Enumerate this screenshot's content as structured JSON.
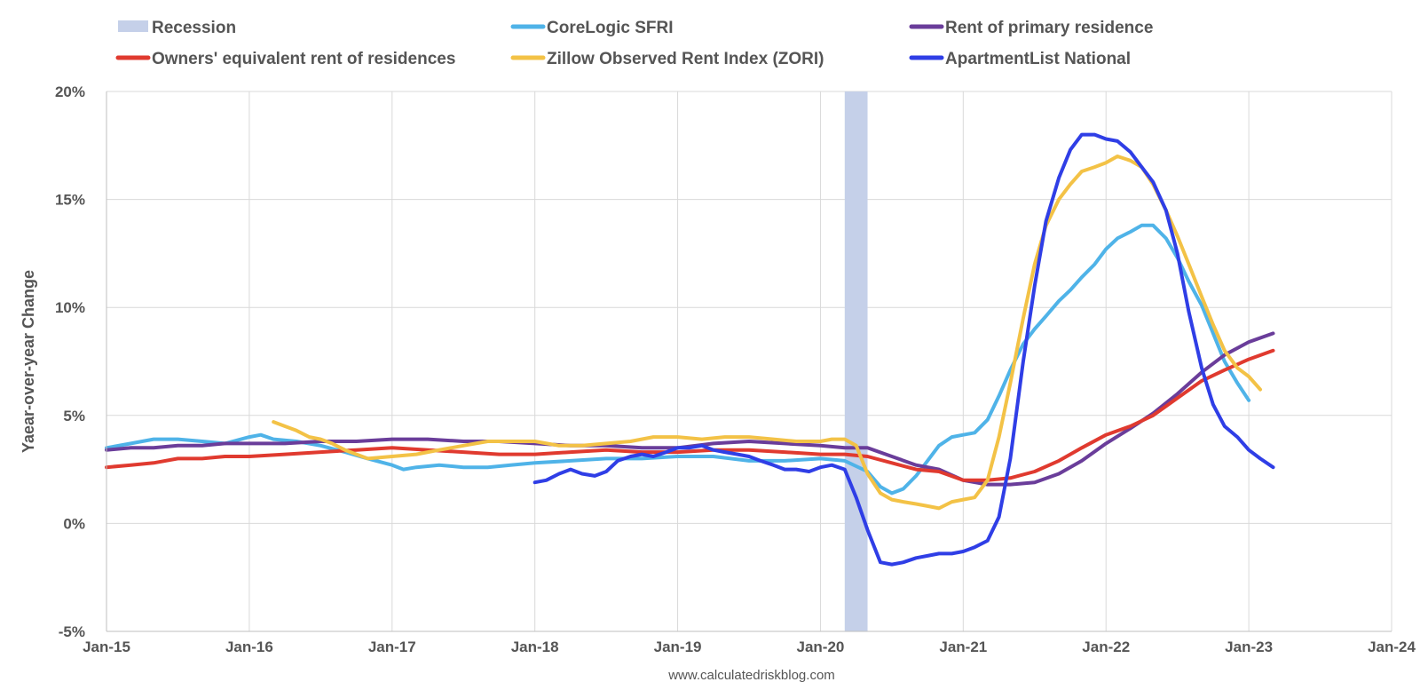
{
  "chart_data": {
    "type": "line",
    "title": "",
    "xlabel": "",
    "ylabel": "Yaear-over-year Change",
    "source": "www.calculatedriskblog.com",
    "grid": true,
    "legend_position": "top",
    "xlim": [
      2015.0,
      2024.0
    ],
    "ylim": [
      -5,
      20
    ],
    "x_ticks": [
      {
        "label": "Jan-15",
        "value": 2015
      },
      {
        "label": "Jan-16",
        "value": 2016
      },
      {
        "label": "Jan-17",
        "value": 2017
      },
      {
        "label": "Jan-18",
        "value": 2018
      },
      {
        "label": "Jan-19",
        "value": 2019
      },
      {
        "label": "Jan-20",
        "value": 2020
      },
      {
        "label": "Jan-21",
        "value": 2021
      },
      {
        "label": "Jan-22",
        "value": 2022
      },
      {
        "label": "Jan-23",
        "value": 2023
      },
      {
        "label": "Jan-24",
        "value": 2024
      }
    ],
    "y_ticks": [
      {
        "label": "-5%",
        "value": -5
      },
      {
        "label": "0%",
        "value": 0
      },
      {
        "label": "5%",
        "value": 5
      },
      {
        "label": "10%",
        "value": 10
      },
      {
        "label": "15%",
        "value": 15
      },
      {
        "label": "20%",
        "value": 20
      }
    ],
    "recession": {
      "label": "Recession",
      "color": "#c5d0e9",
      "start": 2020.17,
      "end": 2020.33
    },
    "series": [
      {
        "name": "CoreLogic SFRI",
        "color": "#4fb3e8",
        "points": [
          [
            2015.0,
            3.5
          ],
          [
            2015.17,
            3.7
          ],
          [
            2015.33,
            3.9
          ],
          [
            2015.5,
            3.9
          ],
          [
            2015.67,
            3.8
          ],
          [
            2015.83,
            3.7
          ],
          [
            2016.0,
            4.0
          ],
          [
            2016.08,
            4.1
          ],
          [
            2016.17,
            3.9
          ],
          [
            2016.33,
            3.8
          ],
          [
            2016.5,
            3.6
          ],
          [
            2016.67,
            3.3
          ],
          [
            2016.83,
            3.0
          ],
          [
            2017.0,
            2.7
          ],
          [
            2017.08,
            2.5
          ],
          [
            2017.17,
            2.6
          ],
          [
            2017.33,
            2.7
          ],
          [
            2017.5,
            2.6
          ],
          [
            2017.67,
            2.6
          ],
          [
            2017.83,
            2.7
          ],
          [
            2018.0,
            2.8
          ],
          [
            2018.25,
            2.9
          ],
          [
            2018.5,
            3.0
          ],
          [
            2018.75,
            3.0
          ],
          [
            2019.0,
            3.1
          ],
          [
            2019.25,
            3.1
          ],
          [
            2019.5,
            2.9
          ],
          [
            2019.75,
            2.9
          ],
          [
            2020.0,
            3.0
          ],
          [
            2020.17,
            2.9
          ],
          [
            2020.33,
            2.4
          ],
          [
            2020.42,
            1.7
          ],
          [
            2020.5,
            1.4
          ],
          [
            2020.58,
            1.6
          ],
          [
            2020.67,
            2.2
          ],
          [
            2020.75,
            2.9
          ],
          [
            2020.83,
            3.6
          ],
          [
            2020.92,
            4.0
          ],
          [
            2021.0,
            4.1
          ],
          [
            2021.08,
            4.2
          ],
          [
            2021.17,
            4.8
          ],
          [
            2021.25,
            5.9
          ],
          [
            2021.33,
            7.1
          ],
          [
            2021.42,
            8.3
          ],
          [
            2021.5,
            9.0
          ],
          [
            2021.58,
            9.6
          ],
          [
            2021.67,
            10.3
          ],
          [
            2021.75,
            10.8
          ],
          [
            2021.83,
            11.4
          ],
          [
            2021.92,
            12.0
          ],
          [
            2022.0,
            12.7
          ],
          [
            2022.08,
            13.2
          ],
          [
            2022.17,
            13.5
          ],
          [
            2022.25,
            13.8
          ],
          [
            2022.33,
            13.8
          ],
          [
            2022.42,
            13.2
          ],
          [
            2022.5,
            12.3
          ],
          [
            2022.58,
            11.2
          ],
          [
            2022.67,
            10.1
          ],
          [
            2022.75,
            8.8
          ],
          [
            2022.83,
            7.5
          ],
          [
            2022.92,
            6.5
          ],
          [
            2023.0,
            5.7
          ]
        ]
      },
      {
        "name": "Rent of primary residence",
        "color": "#6a3d9a",
        "points": [
          [
            2015.0,
            3.4
          ],
          [
            2015.17,
            3.5
          ],
          [
            2015.33,
            3.5
          ],
          [
            2015.5,
            3.6
          ],
          [
            2015.67,
            3.6
          ],
          [
            2015.83,
            3.7
          ],
          [
            2016.0,
            3.7
          ],
          [
            2016.25,
            3.7
          ],
          [
            2016.5,
            3.8
          ],
          [
            2016.75,
            3.8
          ],
          [
            2017.0,
            3.9
          ],
          [
            2017.25,
            3.9
          ],
          [
            2017.5,
            3.8
          ],
          [
            2017.75,
            3.8
          ],
          [
            2018.0,
            3.7
          ],
          [
            2018.25,
            3.6
          ],
          [
            2018.5,
            3.6
          ],
          [
            2018.75,
            3.5
          ],
          [
            2019.0,
            3.5
          ],
          [
            2019.25,
            3.7
          ],
          [
            2019.5,
            3.8
          ],
          [
            2019.75,
            3.7
          ],
          [
            2020.0,
            3.6
          ],
          [
            2020.17,
            3.5
          ],
          [
            2020.33,
            3.5
          ],
          [
            2020.5,
            3.1
          ],
          [
            2020.67,
            2.7
          ],
          [
            2020.83,
            2.5
          ],
          [
            2021.0,
            2.0
          ],
          [
            2021.17,
            1.8
          ],
          [
            2021.33,
            1.8
          ],
          [
            2021.5,
            1.9
          ],
          [
            2021.67,
            2.3
          ],
          [
            2021.83,
            2.9
          ],
          [
            2022.0,
            3.7
          ],
          [
            2022.17,
            4.4
          ],
          [
            2022.33,
            5.1
          ],
          [
            2022.5,
            6.0
          ],
          [
            2022.67,
            7.0
          ],
          [
            2022.83,
            7.8
          ],
          [
            2023.0,
            8.4
          ],
          [
            2023.17,
            8.8
          ]
        ]
      },
      {
        "name": "Owners' equivalent rent of residences",
        "color": "#e03a2f",
        "points": [
          [
            2015.0,
            2.6
          ],
          [
            2015.17,
            2.7
          ],
          [
            2015.33,
            2.8
          ],
          [
            2015.5,
            3.0
          ],
          [
            2015.67,
            3.0
          ],
          [
            2015.83,
            3.1
          ],
          [
            2016.0,
            3.1
          ],
          [
            2016.25,
            3.2
          ],
          [
            2016.5,
            3.3
          ],
          [
            2016.75,
            3.4
          ],
          [
            2017.0,
            3.5
          ],
          [
            2017.25,
            3.4
          ],
          [
            2017.5,
            3.3
          ],
          [
            2017.75,
            3.2
          ],
          [
            2018.0,
            3.2
          ],
          [
            2018.25,
            3.3
          ],
          [
            2018.5,
            3.4
          ],
          [
            2018.75,
            3.3
          ],
          [
            2019.0,
            3.3
          ],
          [
            2019.25,
            3.4
          ],
          [
            2019.5,
            3.4
          ],
          [
            2019.75,
            3.3
          ],
          [
            2020.0,
            3.2
          ],
          [
            2020.17,
            3.2
          ],
          [
            2020.33,
            3.1
          ],
          [
            2020.5,
            2.8
          ],
          [
            2020.67,
            2.5
          ],
          [
            2020.83,
            2.4
          ],
          [
            2021.0,
            2.0
          ],
          [
            2021.17,
            2.0
          ],
          [
            2021.33,
            2.1
          ],
          [
            2021.5,
            2.4
          ],
          [
            2021.67,
            2.9
          ],
          [
            2021.83,
            3.5
          ],
          [
            2022.0,
            4.1
          ],
          [
            2022.17,
            4.5
          ],
          [
            2022.33,
            5.0
          ],
          [
            2022.5,
            5.8
          ],
          [
            2022.67,
            6.6
          ],
          [
            2022.83,
            7.1
          ],
          [
            2023.0,
            7.6
          ],
          [
            2023.17,
            8.0
          ]
        ]
      },
      {
        "name": "Zillow Observed Rent Index (ZORI)",
        "color": "#f3c246",
        "points": [
          [
            2016.17,
            4.7
          ],
          [
            2016.25,
            4.5
          ],
          [
            2016.33,
            4.3
          ],
          [
            2016.42,
            4.0
          ],
          [
            2016.5,
            3.9
          ],
          [
            2016.58,
            3.7
          ],
          [
            2016.67,
            3.4
          ],
          [
            2016.75,
            3.2
          ],
          [
            2016.83,
            3.0
          ],
          [
            2017.0,
            3.1
          ],
          [
            2017.17,
            3.2
          ],
          [
            2017.33,
            3.4
          ],
          [
            2017.5,
            3.6
          ],
          [
            2017.67,
            3.8
          ],
          [
            2017.83,
            3.8
          ],
          [
            2018.0,
            3.8
          ],
          [
            2018.17,
            3.6
          ],
          [
            2018.33,
            3.6
          ],
          [
            2018.5,
            3.7
          ],
          [
            2018.67,
            3.8
          ],
          [
            2018.83,
            4.0
          ],
          [
            2019.0,
            4.0
          ],
          [
            2019.17,
            3.9
          ],
          [
            2019.33,
            4.0
          ],
          [
            2019.5,
            4.0
          ],
          [
            2019.67,
            3.9
          ],
          [
            2019.83,
            3.8
          ],
          [
            2020.0,
            3.8
          ],
          [
            2020.08,
            3.9
          ],
          [
            2020.17,
            3.9
          ],
          [
            2020.25,
            3.6
          ],
          [
            2020.33,
            2.3
          ],
          [
            2020.42,
            1.4
          ],
          [
            2020.5,
            1.1
          ],
          [
            2020.58,
            1.0
          ],
          [
            2020.67,
            0.9
          ],
          [
            2020.75,
            0.8
          ],
          [
            2020.83,
            0.7
          ],
          [
            2020.92,
            1.0
          ],
          [
            2021.0,
            1.1
          ],
          [
            2021.08,
            1.2
          ],
          [
            2021.17,
            2.0
          ],
          [
            2021.25,
            4.0
          ],
          [
            2021.33,
            6.5
          ],
          [
            2021.42,
            9.5
          ],
          [
            2021.5,
            12.0
          ],
          [
            2021.58,
            13.8
          ],
          [
            2021.67,
            15.0
          ],
          [
            2021.75,
            15.7
          ],
          [
            2021.83,
            16.3
          ],
          [
            2021.92,
            16.5
          ],
          [
            2022.0,
            16.7
          ],
          [
            2022.08,
            17.0
          ],
          [
            2022.17,
            16.8
          ],
          [
            2022.25,
            16.5
          ],
          [
            2022.33,
            15.7
          ],
          [
            2022.42,
            14.5
          ],
          [
            2022.5,
            13.3
          ],
          [
            2022.58,
            12.0
          ],
          [
            2022.67,
            10.5
          ],
          [
            2022.75,
            9.2
          ],
          [
            2022.83,
            8.0
          ],
          [
            2022.92,
            7.2
          ],
          [
            2023.0,
            6.8
          ],
          [
            2023.08,
            6.2
          ]
        ]
      },
      {
        "name": "ApartmentList National",
        "color": "#2f3ee6",
        "points": [
          [
            2018.0,
            1.9
          ],
          [
            2018.08,
            2.0
          ],
          [
            2018.17,
            2.3
          ],
          [
            2018.25,
            2.5
          ],
          [
            2018.33,
            2.3
          ],
          [
            2018.42,
            2.2
          ],
          [
            2018.5,
            2.4
          ],
          [
            2018.58,
            2.9
          ],
          [
            2018.67,
            3.1
          ],
          [
            2018.75,
            3.2
          ],
          [
            2018.83,
            3.1
          ],
          [
            2018.92,
            3.3
          ],
          [
            2019.0,
            3.5
          ],
          [
            2019.08,
            3.5
          ],
          [
            2019.17,
            3.6
          ],
          [
            2019.25,
            3.4
          ],
          [
            2019.33,
            3.3
          ],
          [
            2019.42,
            3.2
          ],
          [
            2019.5,
            3.1
          ],
          [
            2019.58,
            2.9
          ],
          [
            2019.67,
            2.7
          ],
          [
            2019.75,
            2.5
          ],
          [
            2019.83,
            2.5
          ],
          [
            2019.92,
            2.4
          ],
          [
            2020.0,
            2.6
          ],
          [
            2020.08,
            2.7
          ],
          [
            2020.17,
            2.5
          ],
          [
            2020.25,
            1.2
          ],
          [
            2020.33,
            -0.3
          ],
          [
            2020.42,
            -1.8
          ],
          [
            2020.5,
            -1.9
          ],
          [
            2020.58,
            -1.8
          ],
          [
            2020.67,
            -1.6
          ],
          [
            2020.75,
            -1.5
          ],
          [
            2020.83,
            -1.4
          ],
          [
            2020.92,
            -1.4
          ],
          [
            2021.0,
            -1.3
          ],
          [
            2021.08,
            -1.1
          ],
          [
            2021.17,
            -0.8
          ],
          [
            2021.25,
            0.3
          ],
          [
            2021.33,
            3.0
          ],
          [
            2021.42,
            7.5
          ],
          [
            2021.5,
            11.0
          ],
          [
            2021.58,
            14.0
          ],
          [
            2021.67,
            16.0
          ],
          [
            2021.75,
            17.3
          ],
          [
            2021.83,
            18.0
          ],
          [
            2021.92,
            18.0
          ],
          [
            2022.0,
            17.8
          ],
          [
            2022.08,
            17.7
          ],
          [
            2022.17,
            17.2
          ],
          [
            2022.25,
            16.5
          ],
          [
            2022.33,
            15.8
          ],
          [
            2022.42,
            14.5
          ],
          [
            2022.5,
            12.5
          ],
          [
            2022.58,
            9.8
          ],
          [
            2022.67,
            7.2
          ],
          [
            2022.75,
            5.5
          ],
          [
            2022.83,
            4.5
          ],
          [
            2022.92,
            4.0
          ],
          [
            2023.0,
            3.4
          ],
          [
            2023.08,
            3.0
          ],
          [
            2023.17,
            2.6
          ]
        ]
      }
    ]
  },
  "legend": {
    "items": [
      {
        "label": "Recession",
        "color": "#c5d0e9",
        "kind": "box"
      },
      {
        "label": "CoreLogic SFRI",
        "color": "#4fb3e8",
        "kind": "line"
      },
      {
        "label": "Rent of primary residence",
        "color": "#6a3d9a",
        "kind": "line"
      },
      {
        "label": "Owners' equivalent rent of residences",
        "color": "#e03a2f",
        "kind": "line"
      },
      {
        "label": "Zillow Observed Rent Index (ZORI)",
        "color": "#f3c246",
        "kind": "line"
      },
      {
        "label": "ApartmentList National",
        "color": "#2f3ee6",
        "kind": "line"
      }
    ]
  }
}
